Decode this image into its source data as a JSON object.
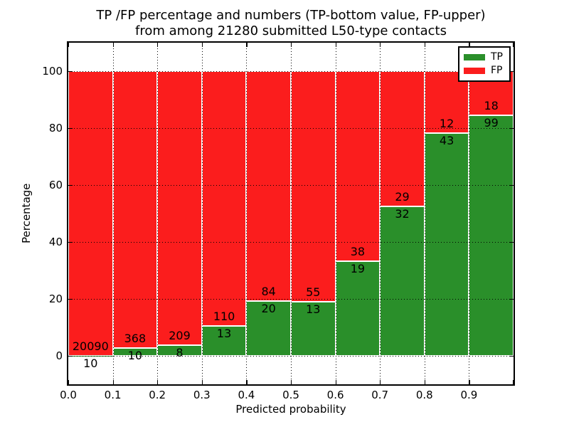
{
  "title_line1": "TP /FP percentage and numbers (TP-bottom value, FP-upper)",
  "title_line2": "from among 21280 submitted L50-type contacts",
  "axes": {
    "xlabel": "Predicted probability",
    "ylabel": "Percentage"
  },
  "legend": {
    "position": "upper right",
    "items": [
      {
        "label": "TP",
        "color": "#2a8f2a"
      },
      {
        "label": "FP",
        "color": "#fb1d1d"
      }
    ]
  },
  "chart_data": {
    "type": "bar",
    "stacked": true,
    "title": "TP /FP percentage and numbers (TP-bottom value, FP-upper) from among 21280 submitted L50-type contacts",
    "total_submitted": 21280,
    "xlabel": "Predicted probability",
    "ylabel": "Percentage",
    "xlim": [
      0.0,
      1.0
    ],
    "ylim": [
      -10,
      110
    ],
    "grid": "dotted",
    "legend_position": "upper right",
    "x_tick_labels": [
      "0.0",
      "0.1",
      "0.2",
      "0.3",
      "0.4",
      "0.5",
      "0.6",
      "0.7",
      "0.8",
      "0.9"
    ],
    "y_ticks": [
      0,
      20,
      40,
      60,
      80,
      100
    ],
    "bin_edges": [
      0.0,
      0.1,
      0.2,
      0.3,
      0.4,
      0.5,
      0.6,
      0.7,
      0.8,
      0.9,
      1.0
    ],
    "series": [
      {
        "name": "TP",
        "color": "#2a8f2a",
        "counts": [
          10,
          10,
          8,
          13,
          20,
          13,
          19,
          32,
          43,
          99
        ]
      },
      {
        "name": "FP",
        "color": "#fb1d1d",
        "counts": [
          20090,
          368,
          209,
          110,
          84,
          55,
          38,
          29,
          12,
          18
        ]
      }
    ],
    "tp_percent_of_bin": [
      0.05,
      2.65,
      3.69,
      10.57,
      19.23,
      19.12,
      33.33,
      52.46,
      78.18,
      84.62
    ]
  }
}
